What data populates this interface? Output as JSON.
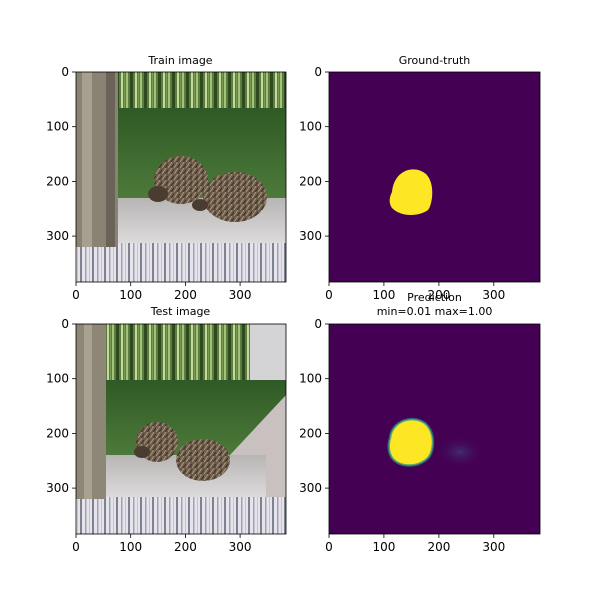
{
  "figure": {
    "background": "#ffffff",
    "colormap": [
      "#440154",
      "#3b528b",
      "#21918c",
      "#5ec962",
      "#fde725"
    ]
  },
  "chart_data": [
    {
      "type": "image",
      "title": "Train image",
      "content": "photo-hedgehogs-on-gravel",
      "xlim": [
        0,
        384
      ],
      "ylim": [
        384,
        0
      ],
      "xticks": [
        0,
        100,
        200,
        300
      ],
      "yticks": [
        0,
        100,
        200,
        300
      ]
    },
    {
      "type": "heatmap",
      "title": "Ground-truth",
      "colormap": "viridis",
      "xlim": [
        0,
        384
      ],
      "ylim": [
        384,
        0
      ],
      "xticks": [
        0,
        100,
        200,
        300
      ],
      "yticks": [
        0,
        100,
        200,
        300
      ],
      "regions": [
        {
          "value": 1.0,
          "center": [
            150,
            222
          ],
          "radius": 38,
          "shape": "blob"
        }
      ]
    },
    {
      "type": "image",
      "title": "Test image",
      "content": "photo-hedgehogs-near-post",
      "xlim": [
        0,
        384
      ],
      "ylim": [
        384,
        0
      ],
      "xticks": [
        0,
        100,
        200,
        300
      ],
      "yticks": [
        0,
        100,
        200,
        300
      ]
    },
    {
      "type": "heatmap",
      "title": "Prediction",
      "subtitle": "min=0.01 max=1.00",
      "colormap": "viridis",
      "min": 0.01,
      "max": 1.0,
      "xlim": [
        0,
        384
      ],
      "ylim": [
        384,
        0
      ],
      "xticks": [
        0,
        100,
        200,
        300
      ],
      "yticks": [
        0,
        100,
        200,
        300
      ],
      "regions": [
        {
          "value": 1.0,
          "center": [
            155,
            220
          ],
          "radius": 38,
          "shape": "blob"
        },
        {
          "value": 0.15,
          "center": [
            240,
            235
          ],
          "radius": 28,
          "shape": "faint-blob"
        }
      ]
    }
  ]
}
